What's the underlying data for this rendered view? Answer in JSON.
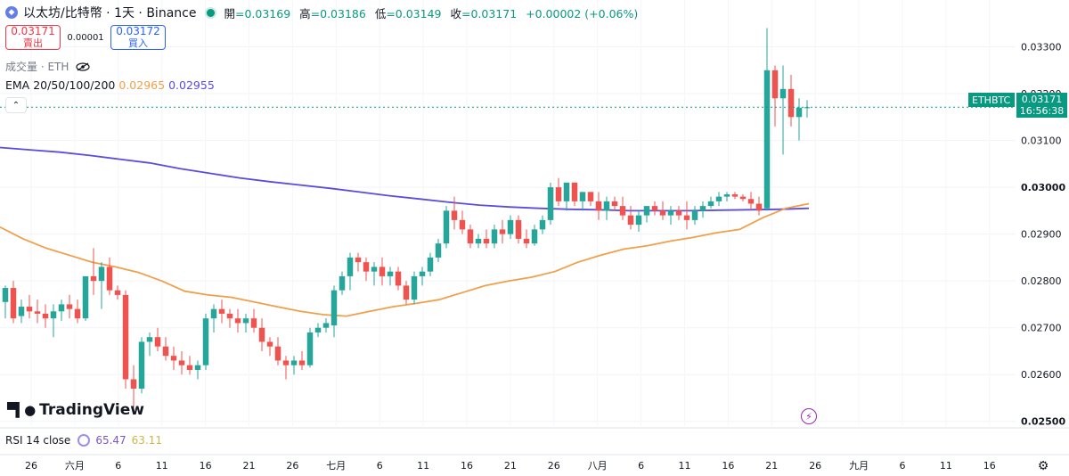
{
  "header": {
    "title": "以太坊/比特幣 · 1天 · Binance",
    "symbol_icon": "ethereum-icon",
    "ohlc": [
      {
        "label": "開",
        "value": "=0.03169"
      },
      {
        "label": "高",
        "value": "=0.03186"
      },
      {
        "label": "低",
        "value": "=0.03149"
      },
      {
        "label": "收",
        "value": "=0.03171"
      }
    ],
    "change": "+0.00002 (+0.06%)"
  },
  "trade": {
    "sell_price": "0.03171",
    "sell_label": "賣出",
    "spread": "0.00001",
    "buy_price": "0.03172",
    "buy_label": "買入"
  },
  "volume_label": "成交量 · ETH",
  "ema": {
    "label": "EMA 20/50/100/200",
    "v1": "0.02965",
    "v2": "0.02955"
  },
  "logo_text": "TradingView",
  "rsi": {
    "label": "RSI 14 close",
    "v1": "65.47",
    "v2": "63.11"
  },
  "price_tag": {
    "symbol": "ETHBTC",
    "price": "0.03171",
    "countdown": "16:56:38"
  },
  "colors": {
    "up": "#26a69a",
    "down": "#ef5350",
    "ema_orange": "#f0a04b",
    "ema_blue": "#5b4be0",
    "last_line": "#089981"
  },
  "chart_data": {
    "type": "candlestick",
    "y_axis_ticks": [
      "0.03300",
      "0.03200",
      "0.03100",
      "0.03000",
      "0.02900",
      "0.02800",
      "0.02700",
      "0.02600",
      "0.02500"
    ],
    "ylim": [
      0.0249,
      0.034
    ],
    "x_axis_ticks": [
      "26",
      "六月",
      "6",
      "11",
      "16",
      "21",
      "26",
      "七月",
      "6",
      "11",
      "16",
      "21",
      "26",
      "八月",
      "6",
      "11",
      "16",
      "21",
      "26",
      "九月",
      "6",
      "11",
      "16"
    ],
    "candles": [
      [
        0.02755,
        0.0279,
        0.0272,
        0.02785
      ],
      [
        0.02785,
        0.028,
        0.0271,
        0.0272
      ],
      [
        0.02725,
        0.0276,
        0.0271,
        0.02745
      ],
      [
        0.02745,
        0.0277,
        0.0272,
        0.02735
      ],
      [
        0.02735,
        0.0276,
        0.0271,
        0.0273
      ],
      [
        0.0273,
        0.0275,
        0.027,
        0.0272
      ],
      [
        0.0272,
        0.0275,
        0.0268,
        0.02735
      ],
      [
        0.02735,
        0.0276,
        0.02715,
        0.0275
      ],
      [
        0.0275,
        0.0277,
        0.0272,
        0.0274
      ],
      [
        0.0274,
        0.0276,
        0.0271,
        0.0272
      ],
      [
        0.0272,
        0.0281,
        0.02715,
        0.0281
      ],
      [
        0.0281,
        0.0287,
        0.0277,
        0.028
      ],
      [
        0.028,
        0.0284,
        0.0274,
        0.0283
      ],
      [
        0.0283,
        0.0285,
        0.0277,
        0.0278
      ],
      [
        0.0278,
        0.0279,
        0.0276,
        0.0277
      ],
      [
        0.0277,
        0.0278,
        0.0257,
        0.0259
      ],
      [
        0.0259,
        0.0262,
        0.0253,
        0.0257
      ],
      [
        0.0257,
        0.0268,
        0.0256,
        0.0267
      ],
      [
        0.0267,
        0.0269,
        0.0264,
        0.0268
      ],
      [
        0.0268,
        0.027,
        0.0265,
        0.0266
      ],
      [
        0.0266,
        0.0268,
        0.0263,
        0.0264
      ],
      [
        0.0264,
        0.0266,
        0.0261,
        0.0263
      ],
      [
        0.0263,
        0.0265,
        0.026,
        0.0262
      ],
      [
        0.0262,
        0.0264,
        0.026,
        0.0261
      ],
      [
        0.0261,
        0.0263,
        0.0259,
        0.0262
      ],
      [
        0.0262,
        0.0273,
        0.0261,
        0.0272
      ],
      [
        0.0272,
        0.0275,
        0.0269,
        0.0274
      ],
      [
        0.0274,
        0.0276,
        0.0271,
        0.0273
      ],
      [
        0.0273,
        0.0274,
        0.027,
        0.0272
      ],
      [
        0.0272,
        0.0274,
        0.0269,
        0.0271
      ],
      [
        0.0271,
        0.0273,
        0.0269,
        0.0272
      ],
      [
        0.0272,
        0.0274,
        0.0269,
        0.027
      ],
      [
        0.027,
        0.0272,
        0.0265,
        0.0267
      ],
      [
        0.0267,
        0.0268,
        0.0264,
        0.0266
      ],
      [
        0.0266,
        0.0268,
        0.0262,
        0.0263
      ],
      [
        0.0263,
        0.0264,
        0.0259,
        0.0262
      ],
      [
        0.0262,
        0.0264,
        0.026,
        0.0263
      ],
      [
        0.0263,
        0.0265,
        0.0261,
        0.0262
      ],
      [
        0.0262,
        0.027,
        0.02615,
        0.0269
      ],
      [
        0.0269,
        0.0271,
        0.0268,
        0.027
      ],
      [
        0.027,
        0.0272,
        0.0269,
        0.0271
      ],
      [
        0.02705,
        0.0279,
        0.0268,
        0.0278
      ],
      [
        0.0278,
        0.0282,
        0.0277,
        0.0281
      ],
      [
        0.0281,
        0.0286,
        0.0278,
        0.0285
      ],
      [
        0.0285,
        0.0286,
        0.0282,
        0.0284
      ],
      [
        0.0284,
        0.0285,
        0.028,
        0.0282
      ],
      [
        0.0282,
        0.0284,
        0.0279,
        0.0283
      ],
      [
        0.0283,
        0.0285,
        0.0279,
        0.0281
      ],
      [
        0.0281,
        0.0283,
        0.0279,
        0.0282
      ],
      [
        0.0282,
        0.0283,
        0.0278,
        0.0279
      ],
      [
        0.0279,
        0.028,
        0.0275,
        0.0276
      ],
      [
        0.0276,
        0.0282,
        0.0275,
        0.0281
      ],
      [
        0.0281,
        0.0283,
        0.0279,
        0.0282
      ],
      [
        0.0282,
        0.0286,
        0.0281,
        0.0285
      ],
      [
        0.0285,
        0.0289,
        0.0284,
        0.0288
      ],
      [
        0.0288,
        0.0296,
        0.0287,
        0.0295
      ],
      [
        0.0295,
        0.0298,
        0.0291,
        0.0293
      ],
      [
        0.0293,
        0.0295,
        0.029,
        0.0291
      ],
      [
        0.0291,
        0.0292,
        0.0287,
        0.0288
      ],
      [
        0.0288,
        0.029,
        0.0287,
        0.0289
      ],
      [
        0.0289,
        0.0291,
        0.0287,
        0.0288
      ],
      [
        0.0288,
        0.0292,
        0.0287,
        0.0291
      ],
      [
        0.0291,
        0.0293,
        0.0288,
        0.029
      ],
      [
        0.029,
        0.0294,
        0.0289,
        0.0293
      ],
      [
        0.0293,
        0.0294,
        0.0288,
        0.0289
      ],
      [
        0.0289,
        0.0291,
        0.0287,
        0.0288
      ],
      [
        0.0288,
        0.0292,
        0.02875,
        0.0291
      ],
      [
        0.0291,
        0.0294,
        0.029,
        0.0293
      ],
      [
        0.0293,
        0.0301,
        0.0292,
        0.03
      ],
      [
        0.03,
        0.0302,
        0.0296,
        0.0297
      ],
      [
        0.0297,
        0.0301,
        0.0295,
        0.0301
      ],
      [
        0.0301,
        0.0301,
        0.0296,
        0.0297
      ],
      [
        0.0297,
        0.0299,
        0.0295,
        0.0299
      ],
      [
        0.0299,
        0.0299,
        0.0296,
        0.0297
      ],
      [
        0.0297,
        0.0299,
        0.0293,
        0.0295
      ],
      [
        0.0295,
        0.0298,
        0.0293,
        0.0297
      ],
      [
        0.0297,
        0.0298,
        0.0295,
        0.0296
      ],
      [
        0.0296,
        0.0298,
        0.0293,
        0.0294
      ],
      [
        0.0294,
        0.0296,
        0.0291,
        0.0292
      ],
      [
        0.0292,
        0.0295,
        0.02905,
        0.0294
      ],
      [
        0.0294,
        0.0296,
        0.02925,
        0.0296
      ],
      [
        0.0296,
        0.0297,
        0.0294,
        0.0295
      ],
      [
        0.0295,
        0.0297,
        0.0293,
        0.0294
      ],
      [
        0.0294,
        0.0296,
        0.0292,
        0.0295
      ],
      [
        0.0295,
        0.0296,
        0.0293,
        0.0294
      ],
      [
        0.0294,
        0.0297,
        0.0291,
        0.0293
      ],
      [
        0.0293,
        0.0296,
        0.0292,
        0.0295
      ],
      [
        0.0295,
        0.0297,
        0.02935,
        0.0296
      ],
      [
        0.0296,
        0.0298,
        0.02955,
        0.0297
      ],
      [
        0.0297,
        0.0299,
        0.0296,
        0.0298
      ],
      [
        0.0298,
        0.0299,
        0.0297,
        0.02985
      ],
      [
        0.02985,
        0.0299,
        0.02975,
        0.0298
      ],
      [
        0.0298,
        0.02985,
        0.0297,
        0.02975
      ],
      [
        0.02975,
        0.0299,
        0.0295,
        0.02965
      ],
      [
        0.02965,
        0.0298,
        0.0294,
        0.0295
      ],
      [
        0.02955,
        0.0334,
        0.0295,
        0.0325
      ],
      [
        0.0325,
        0.0326,
        0.0313,
        0.0319
      ],
      [
        0.0319,
        0.0326,
        0.0307,
        0.0321
      ],
      [
        0.0321,
        0.0324,
        0.0313,
        0.0315
      ],
      [
        0.0315,
        0.0319,
        0.031,
        0.0317
      ],
      [
        0.03169,
        0.03186,
        0.03149,
        0.03171
      ]
    ],
    "ema_200": [
      0.03085,
      0.0308,
      0.03075,
      0.03068,
      0.0306,
      0.03052,
      0.0304,
      0.0303,
      0.0302,
      0.03012,
      0.03005,
      0.02998,
      0.0299,
      0.02982,
      0.02975,
      0.02968,
      0.02962,
      0.02958,
      0.02955,
      0.02953,
      0.02952,
      0.0295,
      0.0295,
      0.0295,
      0.02951,
      0.02952,
      0.02953,
      0.02955
    ],
    "ema_20": [
      0.02915,
      0.0289,
      0.0287,
      0.02855,
      0.0284,
      0.0283,
      0.02818,
      0.028,
      0.02778,
      0.0277,
      0.02765,
      0.02755,
      0.02745,
      0.02735,
      0.02728,
      0.02725,
      0.02735,
      0.02745,
      0.02752,
      0.0276,
      0.02775,
      0.0279,
      0.028,
      0.02808,
      0.0282,
      0.0284,
      0.02855,
      0.02868,
      0.02875,
      0.02885,
      0.02893,
      0.02903,
      0.0291,
      0.02935,
      0.02955,
      0.02965
    ]
  }
}
